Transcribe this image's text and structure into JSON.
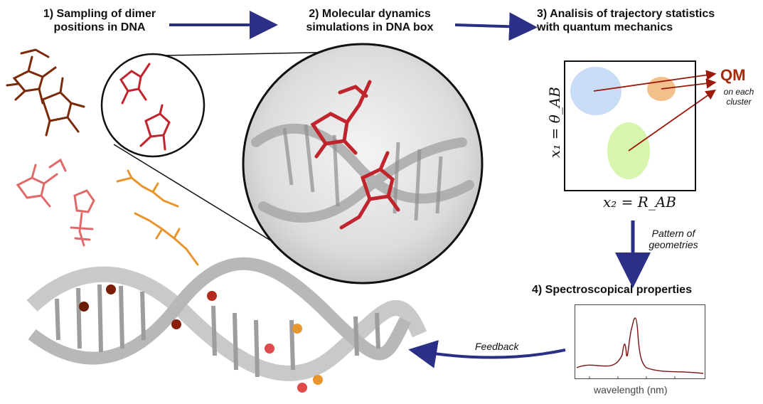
{
  "steps": {
    "step1": "1) Sampling of dimer\npositions in DNA",
    "step2": "2) Molecular dynamics\nsimulations in DNA box",
    "step3": "3) Analisis of trajectory statistics\nwith quantum mechanics",
    "step4": "4) Spectroscopical properties"
  },
  "cluster_plot": {
    "xlabel": "x₂ = R_AB",
    "ylabel": "x₁ = θ_AB",
    "qm_label": "QM",
    "qm_sublabel": "on each\ncluster",
    "cluster_colors": [
      "#c9dcf6",
      "#f2c08a",
      "#d8f5b0"
    ]
  },
  "arrows": {
    "pattern_label": "Pattern of\ngeometries",
    "feedback_label": "Feedback"
  },
  "spectrum": {
    "xlabel": "wavelength (nm)",
    "line_color": "#7a1010"
  },
  "colors": {
    "arrow": "#2b2f86",
    "dye_dark": "#7a2a08",
    "dye_red": "#c0242c",
    "dye_pink": "#e06a6a",
    "dye_orange": "#e8952e",
    "dna": "#c9c9c9"
  }
}
